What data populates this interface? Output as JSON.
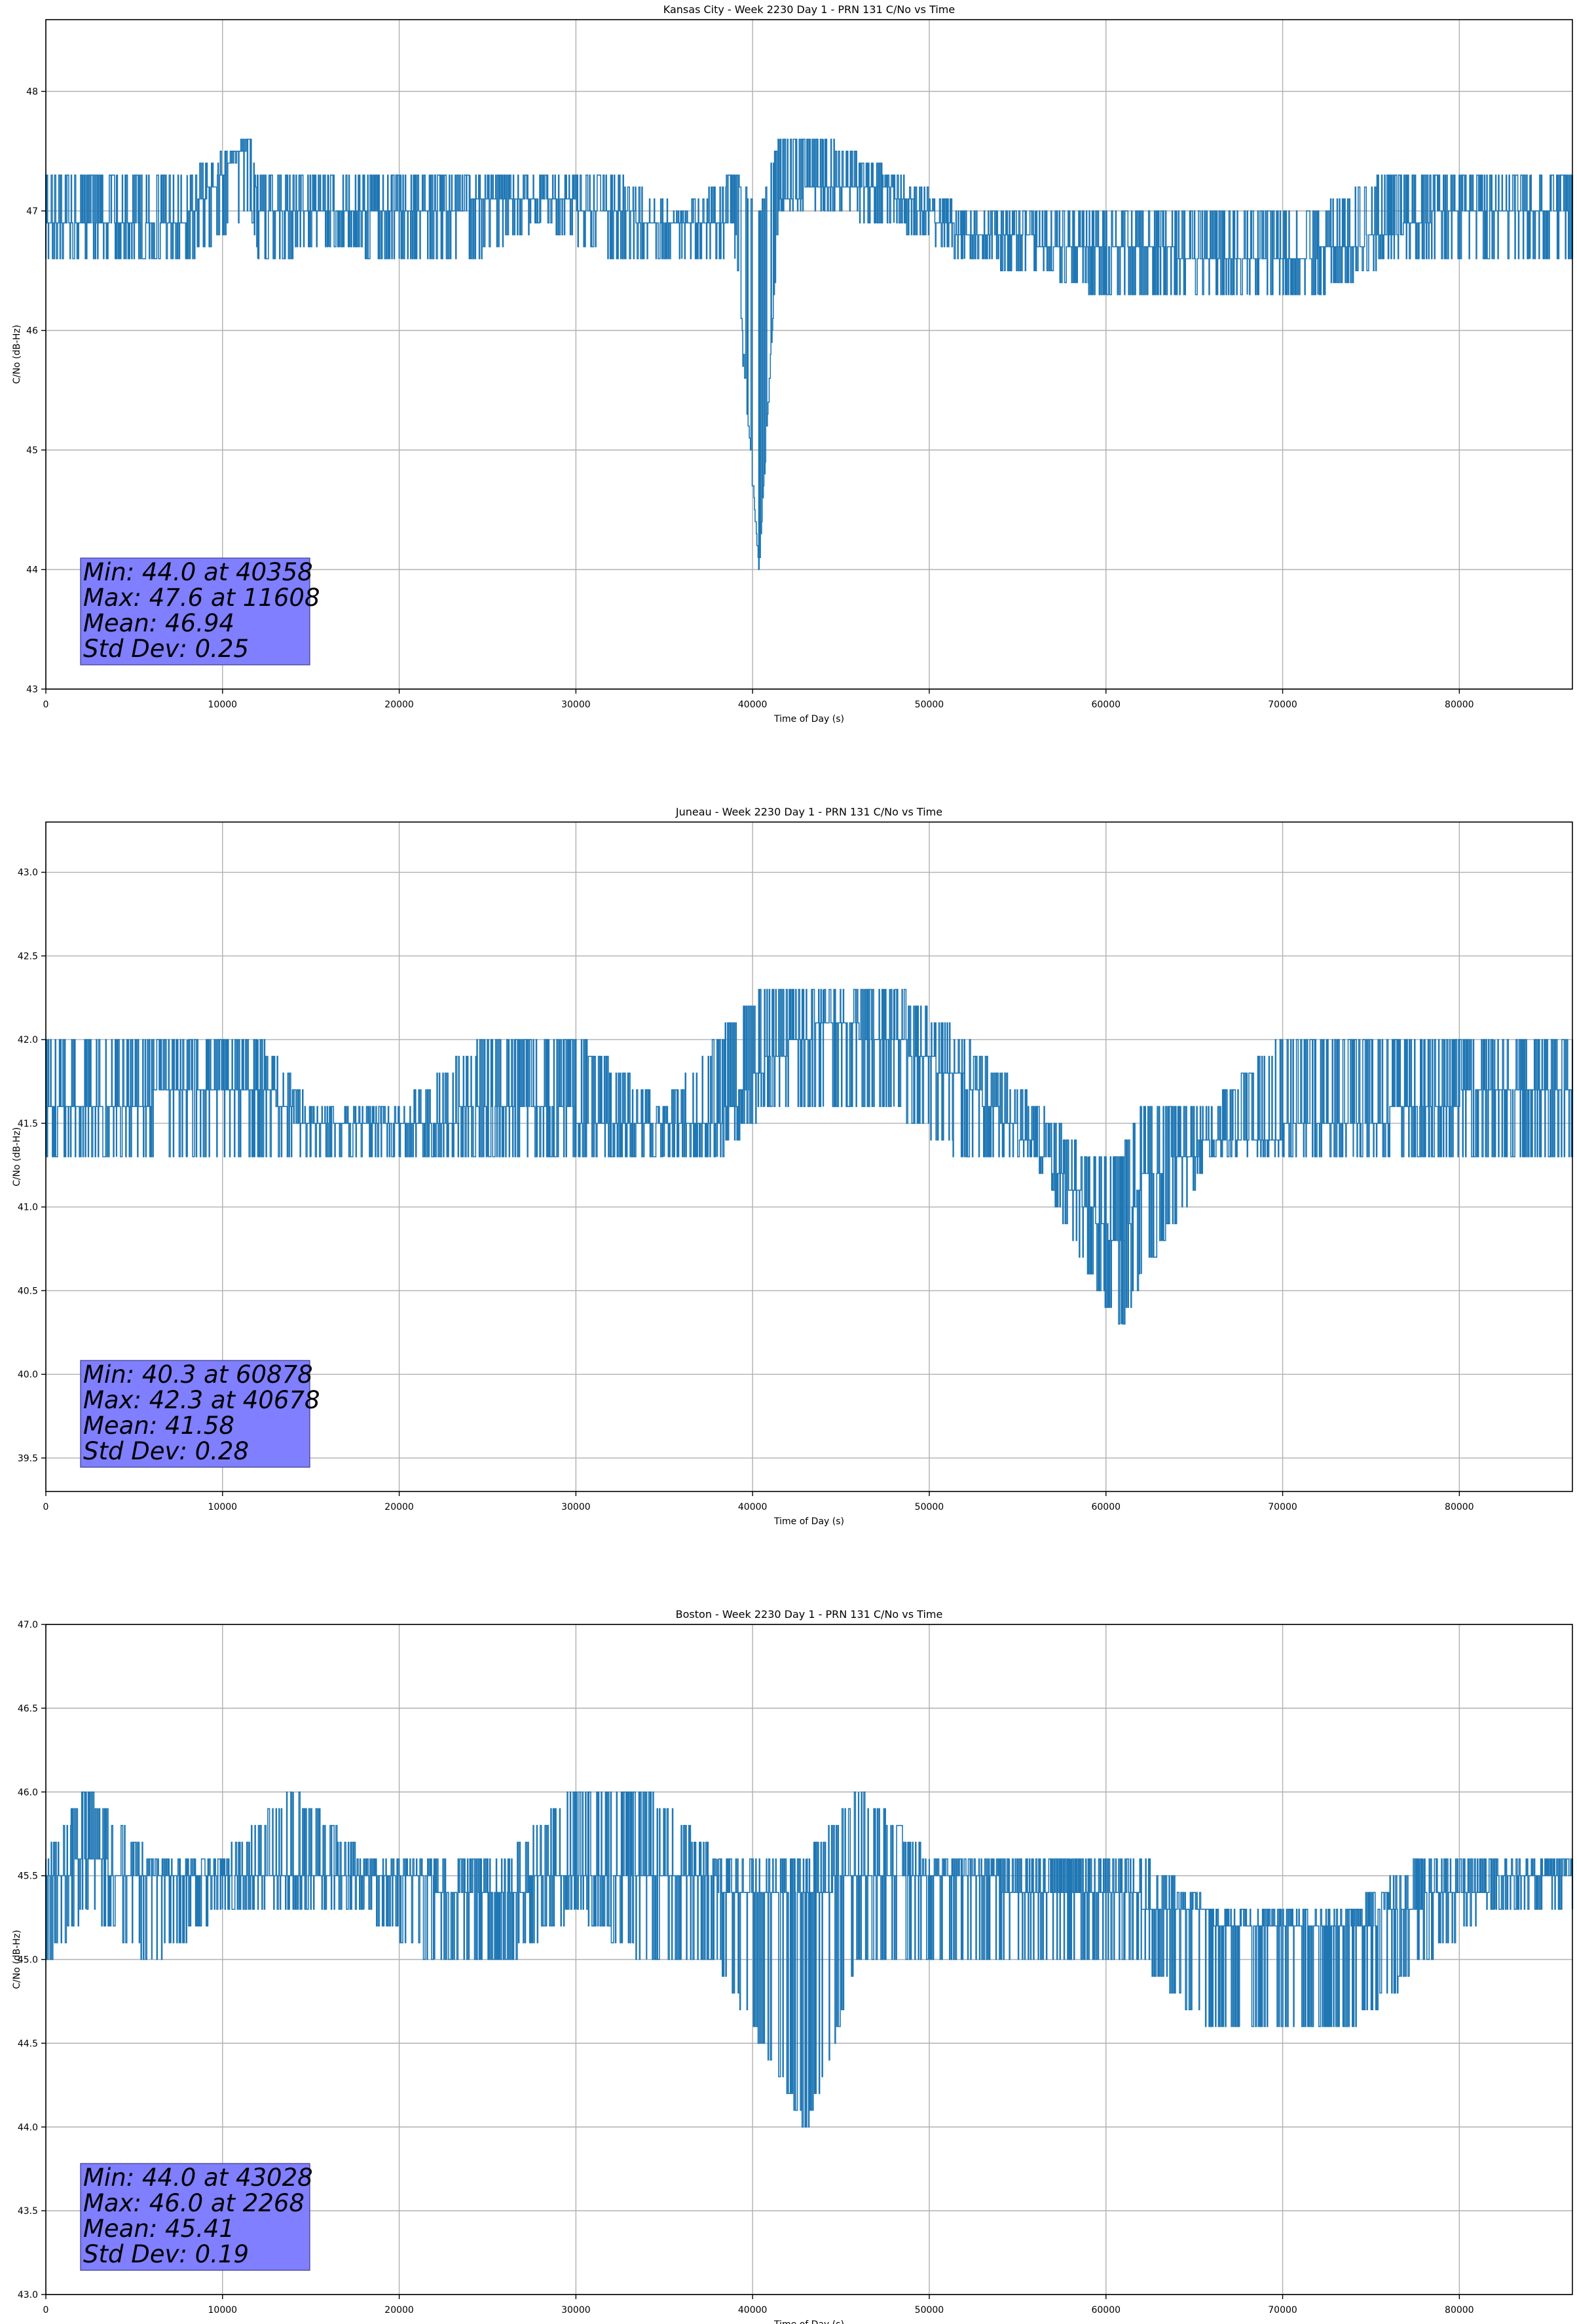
{
  "chart_data": [
    {
      "type": "line",
      "title": "Kansas City - Week 2230 Day 1 - PRN 131 C/No vs Time",
      "xlabel": "Time of Day (s)",
      "ylabel": "C/No (dB-Hz)",
      "xlim": [
        0,
        86400
      ],
      "ylim": [
        43,
        48.6
      ],
      "xticks": [
        0,
        10000,
        20000,
        30000,
        40000,
        50000,
        60000,
        70000,
        80000
      ],
      "xtick_labels": [
        "0",
        "10000",
        "20000",
        "30000",
        "40000",
        "50000",
        "60000",
        "70000",
        "80000"
      ],
      "yticks": [
        43,
        44,
        45,
        46,
        47,
        48
      ],
      "ytick_labels": [
        "43",
        "44",
        "45",
        "46",
        "47",
        "48"
      ],
      "grid": true,
      "series_color": "#1f77b4",
      "series": [
        {
          "name": "C/No",
          "x": [
            0,
            4000,
            8000,
            11608,
            12000,
            16000,
            20000,
            24000,
            28000,
            32000,
            36000,
            39000,
            40358,
            41500,
            44000,
            48000,
            52000,
            56000,
            60000,
            64000,
            68000,
            72000,
            76000,
            80000,
            84000,
            86400
          ],
          "y": [
            46.9,
            46.9,
            46.95,
            47.6,
            47.0,
            47.05,
            46.95,
            47.05,
            47.1,
            47.0,
            46.85,
            46.85,
            44.0,
            47.1,
            47.2,
            47.15,
            46.8,
            46.75,
            46.7,
            46.65,
            46.6,
            46.65,
            46.8,
            47.05,
            46.95,
            47.0
          ],
          "band_low": [
            46.6,
            46.6,
            46.6,
            47.0,
            46.6,
            46.7,
            46.6,
            46.6,
            46.9,
            46.6,
            46.6,
            46.6,
            44.0,
            47.0,
            47.0,
            46.9,
            46.6,
            46.5,
            46.3,
            46.3,
            46.3,
            46.3,
            46.6,
            46.6,
            46.6,
            46.6
          ],
          "band_high": [
            47.3,
            47.3,
            47.3,
            47.6,
            47.3,
            47.3,
            47.3,
            47.3,
            47.3,
            47.3,
            47.0,
            47.3,
            47.0,
            47.6,
            47.6,
            47.3,
            47.0,
            47.0,
            47.0,
            47.0,
            47.0,
            47.0,
            47.3,
            47.3,
            47.3,
            47.3
          ]
        }
      ],
      "stats": [
        "Min: 44.0 at 40358",
        "Max: 47.6 at 11608",
        "Mean: 46.94",
        "Std Dev: 0.25"
      ]
    },
    {
      "type": "line",
      "title": "Juneau - Week 2230 Day 1 - PRN 131 C/No vs Time",
      "xlabel": "Time of Day (s)",
      "ylabel": "C/No (dB-Hz)",
      "xlim": [
        0,
        86400
      ],
      "ylim": [
        39.3,
        43.3
      ],
      "xticks": [
        0,
        10000,
        20000,
        30000,
        40000,
        50000,
        60000,
        70000,
        80000
      ],
      "xtick_labels": [
        "0",
        "10000",
        "20000",
        "30000",
        "40000",
        "50000",
        "60000",
        "70000",
        "80000"
      ],
      "yticks": [
        39.5,
        40.0,
        40.5,
        41.0,
        41.5,
        42.0,
        42.5,
        43.0
      ],
      "ytick_labels": [
        "39.5",
        "40.0",
        "40.5",
        "41.0",
        "41.5",
        "42.0",
        "42.5",
        "43.0"
      ],
      "grid": true,
      "series_color": "#1f77b4",
      "series": [
        {
          "name": "C/No",
          "x": [
            0,
            4000,
            8000,
            12000,
            15000,
            20000,
            25000,
            30000,
            35000,
            38000,
            40678,
            44000,
            48000,
            52000,
            56000,
            59000,
            60878,
            62000,
            66000,
            70000,
            74000,
            78000,
            82000,
            86400
          ],
          "y": [
            41.65,
            41.6,
            41.7,
            41.75,
            41.45,
            41.45,
            41.6,
            41.55,
            41.45,
            41.5,
            41.85,
            42.1,
            42.0,
            41.75,
            41.35,
            41.0,
            40.75,
            41.15,
            41.4,
            41.45,
            41.5,
            41.6,
            41.7,
            41.65
          ],
          "band_low": [
            41.3,
            41.3,
            41.3,
            41.3,
            41.3,
            41.3,
            41.3,
            41.3,
            41.3,
            41.3,
            41.6,
            41.6,
            41.6,
            41.3,
            41.3,
            40.6,
            40.3,
            40.6,
            41.3,
            41.3,
            41.3,
            41.3,
            41.3,
            41.3
          ],
          "band_high": [
            42.0,
            42.0,
            42.0,
            42.0,
            41.6,
            41.6,
            42.0,
            42.0,
            41.6,
            42.0,
            42.3,
            42.3,
            42.3,
            42.0,
            41.6,
            41.3,
            41.3,
            41.6,
            41.6,
            42.0,
            42.0,
            42.0,
            42.0,
            42.0
          ]
        }
      ],
      "stats": [
        "Min: 40.3 at 60878",
        "Max: 42.3 at 40678",
        "Mean: 41.58",
        "Std Dev: 0.28"
      ]
    },
    {
      "type": "line",
      "title": "Boston - Week 2230 Day 1 - PRN 131 C/No vs Time",
      "xlabel": "Time of Day (s)",
      "ylabel": "C/No (dB-Hz)",
      "xlim": [
        0,
        86400
      ],
      "ylim": [
        43.0,
        47.0
      ],
      "xticks": [
        0,
        10000,
        20000,
        30000,
        40000,
        50000,
        60000,
        70000,
        80000
      ],
      "xtick_labels": [
        "0",
        "10000",
        "20000",
        "30000",
        "40000",
        "50000",
        "60000",
        "70000",
        "80000"
      ],
      "yticks": [
        43.0,
        43.5,
        44.0,
        44.5,
        45.0,
        45.5,
        46.0,
        46.5,
        47.0
      ],
      "ytick_labels": [
        "43.0",
        "43.5",
        "44.0",
        "44.5",
        "45.0",
        "45.5",
        "46.0",
        "46.5",
        "47.0"
      ],
      "grid": true,
      "series_color": "#1f77b4",
      "series": [
        {
          "name": "C/No",
          "x": [
            0,
            2268,
            6000,
            10000,
            14000,
            18000,
            22000,
            26000,
            30000,
            34000,
            38000,
            43028,
            46000,
            50000,
            54000,
            58000,
            62000,
            66000,
            70000,
            74000,
            78000,
            82000,
            86400
          ],
          "y": [
            45.45,
            45.6,
            45.45,
            45.45,
            45.5,
            45.45,
            45.45,
            45.4,
            45.55,
            45.5,
            45.45,
            45.4,
            45.5,
            45.5,
            45.45,
            45.4,
            45.35,
            45.25,
            45.2,
            45.2,
            45.35,
            45.45,
            45.45
          ],
          "band_low": [
            45.0,
            45.3,
            45.0,
            45.3,
            45.3,
            45.3,
            45.0,
            45.0,
            45.3,
            45.0,
            45.0,
            44.0,
            45.0,
            45.0,
            45.0,
            45.0,
            45.0,
            44.6,
            44.6,
            44.6,
            45.0,
            45.3,
            45.3
          ],
          "band_high": [
            45.6,
            46.0,
            45.6,
            45.6,
            46.0,
            45.6,
            45.6,
            45.6,
            46.0,
            46.0,
            45.6,
            45.6,
            46.0,
            45.6,
            45.6,
            45.6,
            45.6,
            45.3,
            45.3,
            45.3,
            45.6,
            45.6,
            45.6
          ]
        }
      ],
      "stats": [
        "Min: 44.0 at 43028",
        "Max: 46.0 at 2268",
        "Mean: 45.41",
        "Std Dev: 0.19"
      ]
    }
  ]
}
